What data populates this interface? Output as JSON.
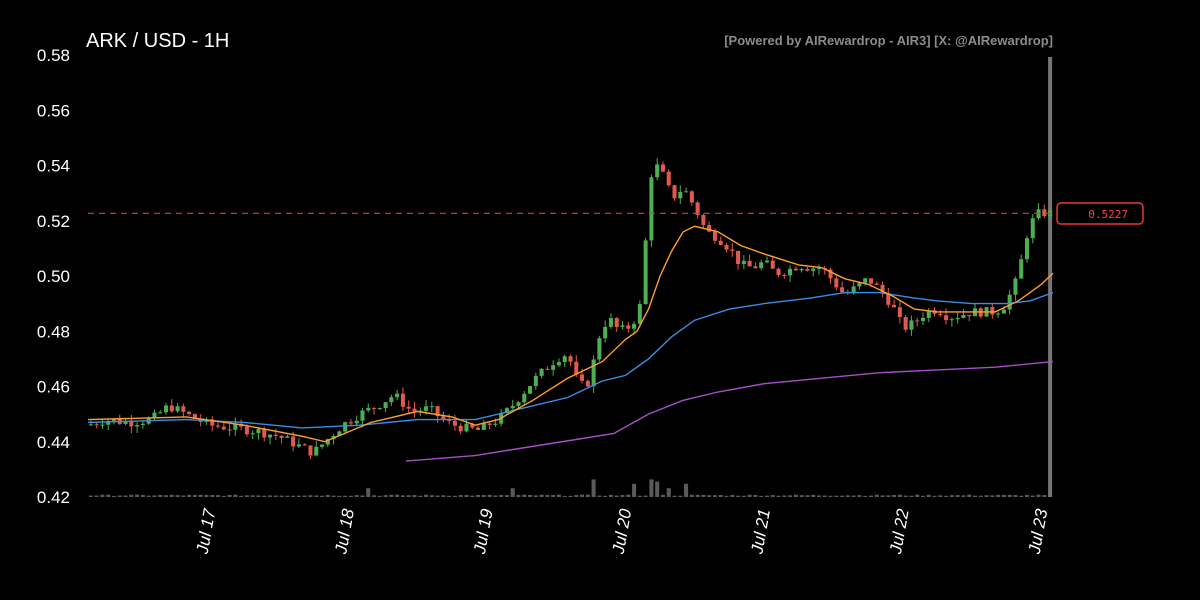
{
  "chart_data": {
    "type": "candlestick",
    "title": "ARK / USD - 1H",
    "credit": "[Powered by AIRewardrop - AIR3] [X: @AIRewardrop]",
    "ylim": [
      0.42,
      0.58
    ],
    "y_ticks": [
      "0.42",
      "0.44",
      "0.46",
      "0.48",
      "0.50",
      "0.52",
      "0.54",
      "0.56",
      "0.58"
    ],
    "x_ticks": [
      {
        "label": "Jul 17",
        "t": 24
      },
      {
        "label": "Jul 18",
        "t": 48
      },
      {
        "label": "Jul 19",
        "t": 72
      },
      {
        "label": "Jul 20",
        "t": 96
      },
      {
        "label": "Jul 21",
        "t": 120
      },
      {
        "label": "Jul 22",
        "t": 144
      },
      {
        "label": "Jul 23",
        "t": 168
      }
    ],
    "time_range_hours": [
      3,
      170
    ],
    "current_price": {
      "value": 0.5227,
      "label": "0.5227"
    },
    "colors": {
      "up": "#4caf50",
      "down": "#e05a4f",
      "ma_short": "#ff9d2e",
      "ma_medium": "#3a8ee6",
      "ma_long": "#a64fc8",
      "price_line": "#e53935",
      "volume": "#5a5a5a"
    },
    "price_keypoints": [
      [
        3,
        0.446
      ],
      [
        6,
        0.448
      ],
      [
        10,
        0.447
      ],
      [
        14,
        0.448
      ],
      [
        17,
        0.453
      ],
      [
        21,
        0.449
      ],
      [
        24,
        0.446
      ],
      [
        28,
        0.445
      ],
      [
        32,
        0.444
      ],
      [
        36,
        0.442
      ],
      [
        40,
        0.438
      ],
      [
        42,
        0.436
      ],
      [
        44,
        0.44
      ],
      [
        47,
        0.446
      ],
      [
        50,
        0.45
      ],
      [
        53,
        0.453
      ],
      [
        56,
        0.457
      ],
      [
        59,
        0.451
      ],
      [
        62,
        0.452
      ],
      [
        65,
        0.447
      ],
      [
        68,
        0.445
      ],
      [
        71,
        0.444
      ],
      [
        72,
        0.446
      ],
      [
        74,
        0.448
      ],
      [
        76,
        0.452
      ],
      [
        78,
        0.457
      ],
      [
        80,
        0.462
      ],
      [
        82,
        0.466
      ],
      [
        84,
        0.47
      ],
      [
        86,
        0.472
      ],
      [
        88,
        0.46
      ],
      [
        90,
        0.462
      ],
      [
        91,
        0.476
      ],
      [
        93,
        0.485
      ],
      [
        95,
        0.48
      ],
      [
        97,
        0.482
      ],
      [
        98,
        0.486
      ],
      [
        99,
        0.492
      ],
      [
        100,
        0.533
      ],
      [
        101,
        0.541
      ],
      [
        103,
        0.535
      ],
      [
        104,
        0.528
      ],
      [
        106,
        0.532
      ],
      [
        108,
        0.525
      ],
      [
        110,
        0.516
      ],
      [
        112,
        0.514
      ],
      [
        114,
        0.51
      ],
      [
        116,
        0.504
      ],
      [
        118,
        0.503
      ],
      [
        120,
        0.505
      ],
      [
        122,
        0.501
      ],
      [
        124,
        0.502
      ],
      [
        126,
        0.504
      ],
      [
        128,
        0.503
      ],
      [
        130,
        0.503
      ],
      [
        132,
        0.498
      ],
      [
        134,
        0.493
      ],
      [
        136,
        0.496
      ],
      [
        138,
        0.499
      ],
      [
        140,
        0.495
      ],
      [
        142,
        0.49
      ],
      [
        143,
        0.486
      ],
      [
        144,
        0.481
      ],
      [
        146,
        0.483
      ],
      [
        148,
        0.487
      ],
      [
        150,
        0.488
      ],
      [
        152,
        0.485
      ],
      [
        154,
        0.486
      ],
      [
        156,
        0.487
      ],
      [
        158,
        0.487
      ],
      [
        160,
        0.487
      ],
      [
        162,
        0.49
      ],
      [
        163,
        0.496
      ],
      [
        164,
        0.499
      ],
      [
        165,
        0.512
      ],
      [
        166,
        0.518
      ],
      [
        167,
        0.522
      ],
      [
        168,
        0.523
      ],
      [
        169,
        0.5227
      ]
    ],
    "ma_short_keypoints": [
      [
        3,
        0.448
      ],
      [
        20,
        0.449
      ],
      [
        30,
        0.446
      ],
      [
        40,
        0.442
      ],
      [
        44,
        0.44
      ],
      [
        52,
        0.447
      ],
      [
        60,
        0.451
      ],
      [
        66,
        0.449
      ],
      [
        70,
        0.446
      ],
      [
        74,
        0.448
      ],
      [
        80,
        0.455
      ],
      [
        86,
        0.463
      ],
      [
        92,
        0.469
      ],
      [
        96,
        0.477
      ],
      [
        98,
        0.48
      ],
      [
        100,
        0.488
      ],
      [
        102,
        0.5
      ],
      [
        104,
        0.509
      ],
      [
        106,
        0.516
      ],
      [
        108,
        0.518
      ],
      [
        112,
        0.516
      ],
      [
        116,
        0.511
      ],
      [
        120,
        0.508
      ],
      [
        126,
        0.504
      ],
      [
        130,
        0.503
      ],
      [
        134,
        0.499
      ],
      [
        138,
        0.497
      ],
      [
        142,
        0.493
      ],
      [
        146,
        0.488
      ],
      [
        150,
        0.487
      ],
      [
        156,
        0.487
      ],
      [
        160,
        0.487
      ],
      [
        164,
        0.491
      ],
      [
        168,
        0.497
      ],
      [
        170,
        0.501
      ]
    ],
    "ma_medium_keypoints": [
      [
        3,
        0.447
      ],
      [
        20,
        0.448
      ],
      [
        30,
        0.447
      ],
      [
        40,
        0.445
      ],
      [
        50,
        0.446
      ],
      [
        60,
        0.448
      ],
      [
        70,
        0.448
      ],
      [
        78,
        0.452
      ],
      [
        86,
        0.456
      ],
      [
        92,
        0.462
      ],
      [
        96,
        0.464
      ],
      [
        100,
        0.47
      ],
      [
        104,
        0.478
      ],
      [
        108,
        0.484
      ],
      [
        114,
        0.488
      ],
      [
        120,
        0.49
      ],
      [
        128,
        0.492
      ],
      [
        134,
        0.494
      ],
      [
        140,
        0.494
      ],
      [
        146,
        0.492
      ],
      [
        150,
        0.491
      ],
      [
        156,
        0.49
      ],
      [
        162,
        0.49
      ],
      [
        166,
        0.491
      ],
      [
        170,
        0.494
      ]
    ],
    "ma_long_keypoints": [
      [
        58,
        0.433
      ],
      [
        64,
        0.434
      ],
      [
        70,
        0.435
      ],
      [
        76,
        0.437
      ],
      [
        82,
        0.439
      ],
      [
        88,
        0.441
      ],
      [
        94,
        0.443
      ],
      [
        100,
        0.45
      ],
      [
        106,
        0.455
      ],
      [
        112,
        0.458
      ],
      [
        120,
        0.461
      ],
      [
        130,
        0.463
      ],
      [
        140,
        0.465
      ],
      [
        150,
        0.466
      ],
      [
        160,
        0.467
      ],
      [
        170,
        0.469
      ]
    ],
    "volume_spikes": [
      [
        51,
        2
      ],
      [
        76,
        2
      ],
      [
        90,
        4
      ],
      [
        97,
        3
      ],
      [
        100,
        4
      ],
      [
        101,
        3.5
      ],
      [
        103,
        2
      ],
      [
        106,
        3
      ],
      [
        169,
        100
      ]
    ]
  }
}
